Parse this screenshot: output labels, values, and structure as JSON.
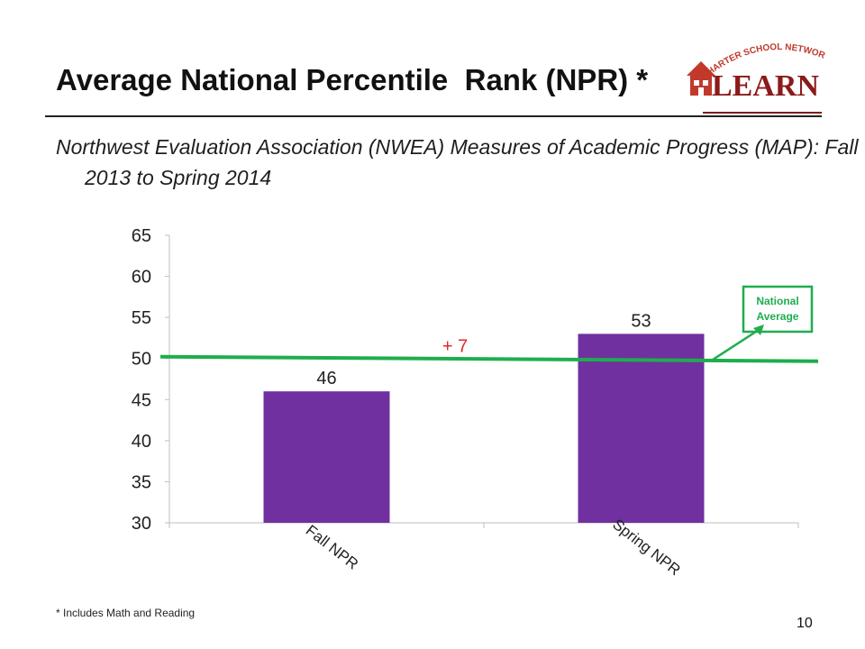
{
  "slide": {
    "title": "Average National Percentile  Rank (NPR) *",
    "subtitle": "Northwest Evaluation Association (NWEA) Measures of Academic Progress (MAP): Fall 2013 to Spring 2014",
    "footnote": "* Includes Math and Reading",
    "page_number": "10"
  },
  "logo": {
    "arc_text": "CHARTER SCHOOL NETWORK",
    "word": "LEARN",
    "colors": {
      "arc": "#c0392b",
      "word": "#8b1a1a",
      "house": "#c0392b"
    }
  },
  "chart_data": {
    "type": "bar",
    "categories": [
      "Fall NPR",
      "Spring NPR"
    ],
    "values": [
      46,
      53
    ],
    "data_labels": [
      "46",
      "53"
    ],
    "ylim": [
      30,
      65
    ],
    "yticks": [
      65,
      60,
      55,
      50,
      45,
      40,
      35,
      30
    ],
    "grid": false,
    "reference_line": {
      "value": 50,
      "label": "National Average",
      "color": "#1fad4e"
    },
    "change_annotation": {
      "text": "+ 7",
      "color": "#e0292b"
    },
    "bar_color": "#7030a0",
    "xlabel": "",
    "ylabel": ""
  }
}
